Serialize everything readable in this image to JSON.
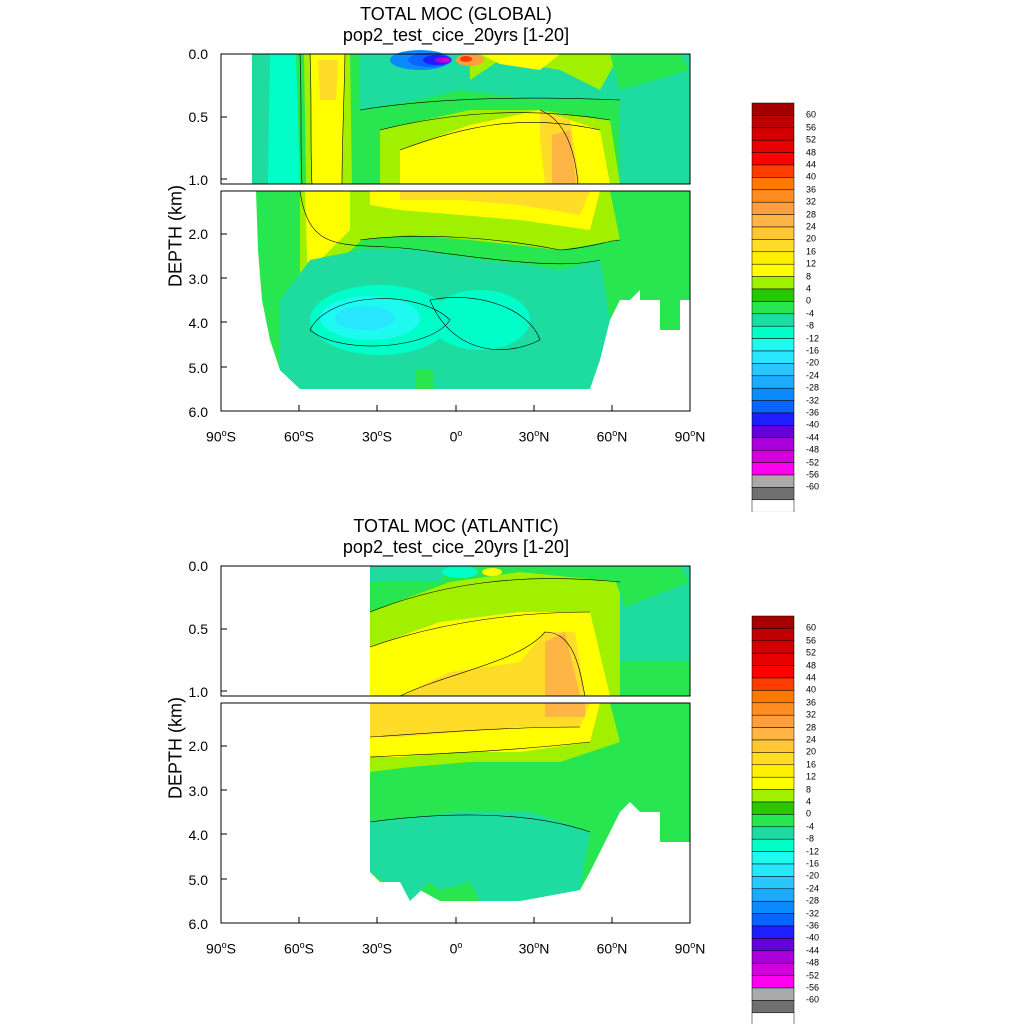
{
  "panels": [
    {
      "title": "TOTAL MOC (GLOBAL)",
      "subtitle": "pop2_test_cice_20yrs [1-20]",
      "ylabel": "DEPTH (km)",
      "yticks": [
        "0.0",
        "0.5",
        "1.0",
        "2.0",
        "3.0",
        "4.0",
        "5.0",
        "6.0"
      ],
      "xticks": [
        {
          "deg": "90",
          "hem": "S"
        },
        {
          "deg": "60",
          "hem": "S"
        },
        {
          "deg": "30",
          "hem": "S"
        },
        {
          "deg": "0",
          "hem": ""
        },
        {
          "deg": "30",
          "hem": "N"
        },
        {
          "deg": "60",
          "hem": "N"
        },
        {
          "deg": "90",
          "hem": "N"
        }
      ]
    },
    {
      "title": "TOTAL MOC (ATLANTIC)",
      "subtitle": "pop2_test_cice_20yrs [1-20]",
      "ylabel": "DEPTH (km)",
      "yticks": [
        "0.0",
        "0.5",
        "1.0",
        "2.0",
        "3.0",
        "4.0",
        "5.0",
        "6.0"
      ],
      "xticks": [
        {
          "deg": "90",
          "hem": "S"
        },
        {
          "deg": "60",
          "hem": "S"
        },
        {
          "deg": "30",
          "hem": "S"
        },
        {
          "deg": "0",
          "hem": ""
        },
        {
          "deg": "30",
          "hem": "N"
        },
        {
          "deg": "60",
          "hem": "N"
        },
        {
          "deg": "90",
          "hem": "N"
        }
      ]
    }
  ],
  "colorbar": {
    "labels": [
      "60",
      "56",
      "52",
      "48",
      "44",
      "40",
      "36",
      "32",
      "28",
      "24",
      "20",
      "16",
      "12",
      "8",
      "4",
      "0",
      "-4",
      "-8",
      "-12",
      "-16",
      "-20",
      "-24",
      "-28",
      "-32",
      "-36",
      "-40",
      "-44",
      "-48",
      "-52",
      "-56",
      "-60"
    ],
    "colors": [
      "#a50000",
      "#be0000",
      "#d20000",
      "#e60000",
      "#ff0000",
      "#ff3c00",
      "#ff7800",
      "#ff8c1e",
      "#ff9e3c",
      "#ffb446",
      "#ffc832",
      "#ffdc28",
      "#fff000",
      "#ffff00",
      "#a0f000",
      "#28c800",
      "#28e650",
      "#1edca0",
      "#00ffc8",
      "#1efaf0",
      "#28e6ff",
      "#28c8ff",
      "#1eaaff",
      "#0a8cff",
      "#0a64ff",
      "#1e1eff",
      "#6400dc",
      "#aa00dc",
      "#d200dc",
      "#ff00f0",
      "#aaaaaa",
      "#707070",
      "#ffffff"
    ]
  },
  "chart_data": [
    {
      "type": "heatmap",
      "title": "TOTAL MOC (GLOBAL)",
      "subtitle": "pop2_test_cice_20yrs [1-20]",
      "xlabel": "",
      "ylabel": "DEPTH (km)",
      "xlim": [
        -90,
        90
      ],
      "ylim": [
        6.0,
        0.0
      ],
      "y_break_km": 1.0,
      "contour_levels": [
        -60,
        -56,
        -52,
        -48,
        -44,
        -40,
        -36,
        -32,
        -28,
        -24,
        -20,
        -16,
        -12,
        -8,
        -4,
        0,
        4,
        8,
        12,
        16,
        20,
        24,
        28,
        32,
        36,
        40,
        44,
        48,
        52,
        56,
        60
      ],
      "features": [
        {
          "lat": -50,
          "depth_km": 0.4,
          "value": 16
        },
        {
          "lat": -5,
          "depth_km": 0.0,
          "value": -40
        },
        {
          "lat": 0,
          "depth_km": 0.75,
          "value": 14
        },
        {
          "lat": 40,
          "depth_km": 0.9,
          "value": 22
        },
        {
          "lat": 20,
          "depth_km": 1.3,
          "value": 18
        },
        {
          "lat": -30,
          "depth_km": 3.6,
          "value": -10
        },
        {
          "lat": 10,
          "depth_km": 4.0,
          "value": -6
        }
      ]
    },
    {
      "type": "heatmap",
      "title": "TOTAL MOC (ATLANTIC)",
      "subtitle": "pop2_test_cice_20yrs [1-20]",
      "xlabel": "",
      "ylabel": "DEPTH (km)",
      "xlim": [
        -90,
        90
      ],
      "ylim": [
        6.0,
        0.0
      ],
      "y_break_km": 1.0,
      "contour_levels": [
        -60,
        -56,
        -52,
        -48,
        -44,
        -40,
        -36,
        -32,
        -28,
        -24,
        -20,
        -16,
        -12,
        -8,
        -4,
        0,
        4,
        8,
        12,
        16,
        20,
        24,
        28,
        32,
        36,
        40,
        44,
        48,
        52,
        56,
        60
      ],
      "features": [
        {
          "lat": 10,
          "depth_km": 0.75,
          "value": 16
        },
        {
          "lat": 42,
          "depth_km": 0.9,
          "value": 22
        },
        {
          "lat": 20,
          "depth_km": 1.4,
          "value": 18
        },
        {
          "lat": 0,
          "depth_km": 4.8,
          "value": -2
        }
      ]
    }
  ]
}
